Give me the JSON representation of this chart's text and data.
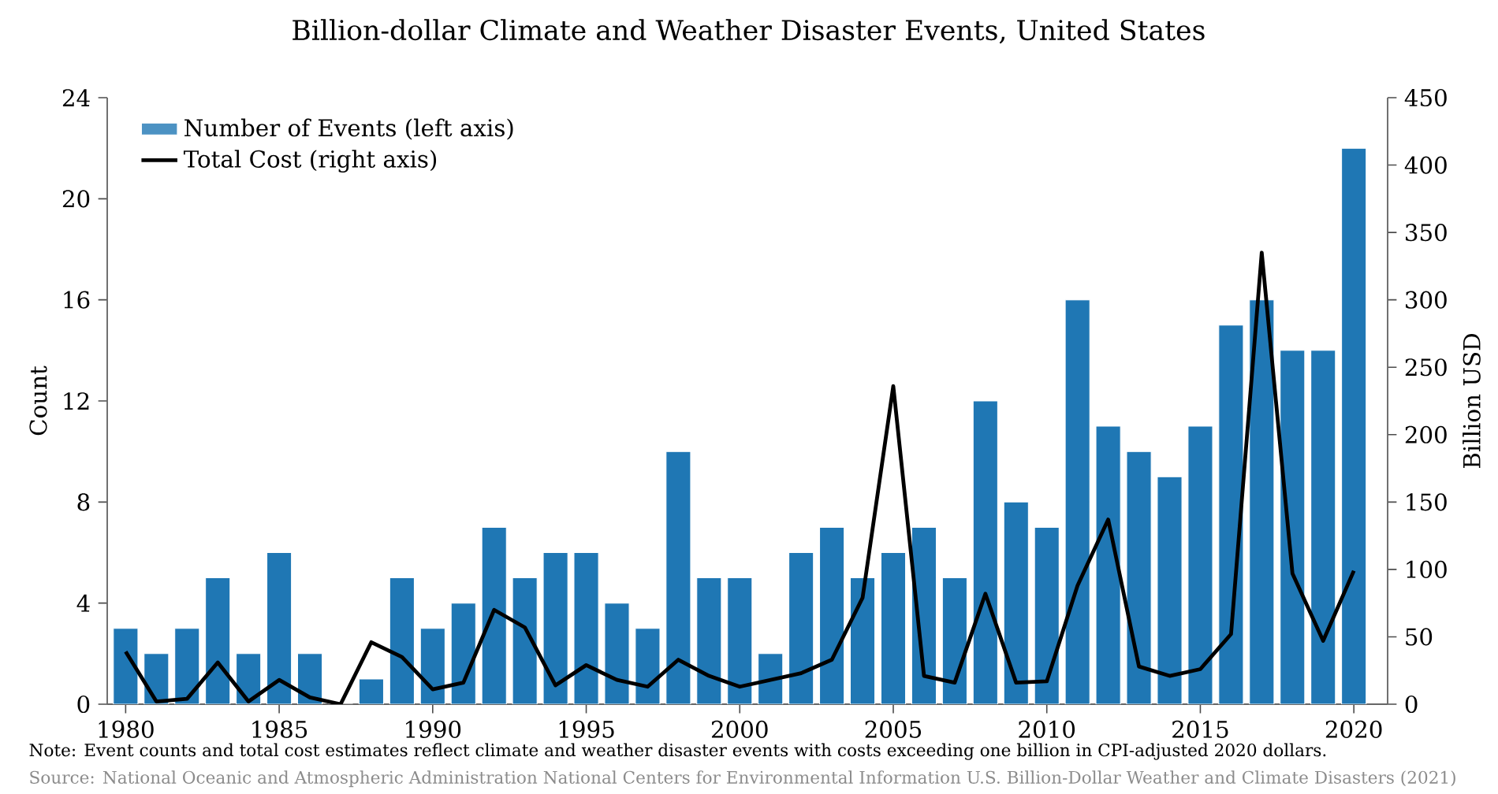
{
  "chart_data": {
    "type": "bar",
    "title": "Billion-dollar Climate and Weather Disaster Events, United States",
    "ylabel": "Count",
    "y2label": "Billion USD",
    "x": [
      1980,
      1981,
      1982,
      1983,
      1984,
      1985,
      1986,
      1987,
      1988,
      1989,
      1990,
      1991,
      1992,
      1993,
      1994,
      1995,
      1996,
      1997,
      1998,
      1999,
      2000,
      2001,
      2002,
      2003,
      2004,
      2005,
      2006,
      2007,
      2008,
      2009,
      2010,
      2011,
      2012,
      2013,
      2014,
      2015,
      2016,
      2017,
      2018,
      2019,
      2020
    ],
    "xlim": [
      1979.4,
      2021.1
    ],
    "xticks": [
      1980,
      1985,
      1990,
      1995,
      2000,
      2005,
      2010,
      2015,
      2020
    ],
    "ylim": [
      0,
      24
    ],
    "yticks": [
      0,
      4,
      8,
      12,
      16,
      20,
      24
    ],
    "y2lim": [
      0,
      450
    ],
    "y2ticks": [
      0,
      50,
      100,
      150,
      200,
      250,
      300,
      350,
      400,
      450
    ],
    "legend": "top left",
    "series": [
      {
        "name": "Number of Events (left axis)",
        "color": "#1f77b4",
        "values": [
          3,
          2,
          3,
          5,
          2,
          6,
          2,
          0,
          1,
          5,
          3,
          4,
          7,
          5,
          6,
          6,
          4,
          3,
          10,
          5,
          5,
          2,
          6,
          7,
          5,
          6,
          7,
          5,
          12,
          8,
          7,
          16,
          11,
          10,
          9,
          11,
          15,
          16,
          14,
          14,
          22
        ]
      },
      {
        "name": "Total Cost (right axis)",
        "type": "line",
        "color": "#000000",
        "axis": "y2",
        "values": [
          39,
          2,
          4,
          31,
          2,
          18,
          5,
          0,
          46,
          35,
          11,
          16,
          70,
          57,
          14,
          29,
          18,
          13,
          33,
          21,
          13,
          18,
          23,
          33,
          79,
          236,
          21,
          16,
          82,
          16,
          17,
          88,
          137,
          28,
          21,
          26,
          52,
          335,
          97,
          47,
          99
        ]
      }
    ],
    "annotations": [
      "Note: Event counts and total cost estimates reflect climate and weather disaster events with costs exceeding one billion in CPI-adjusted 2020 dollars.",
      "Source: National Oceanic and Atmospheric Administration National Centers for Environmental Information U.S. Billion-Dollar Weather and Climate Disasters (2021)"
    ]
  }
}
